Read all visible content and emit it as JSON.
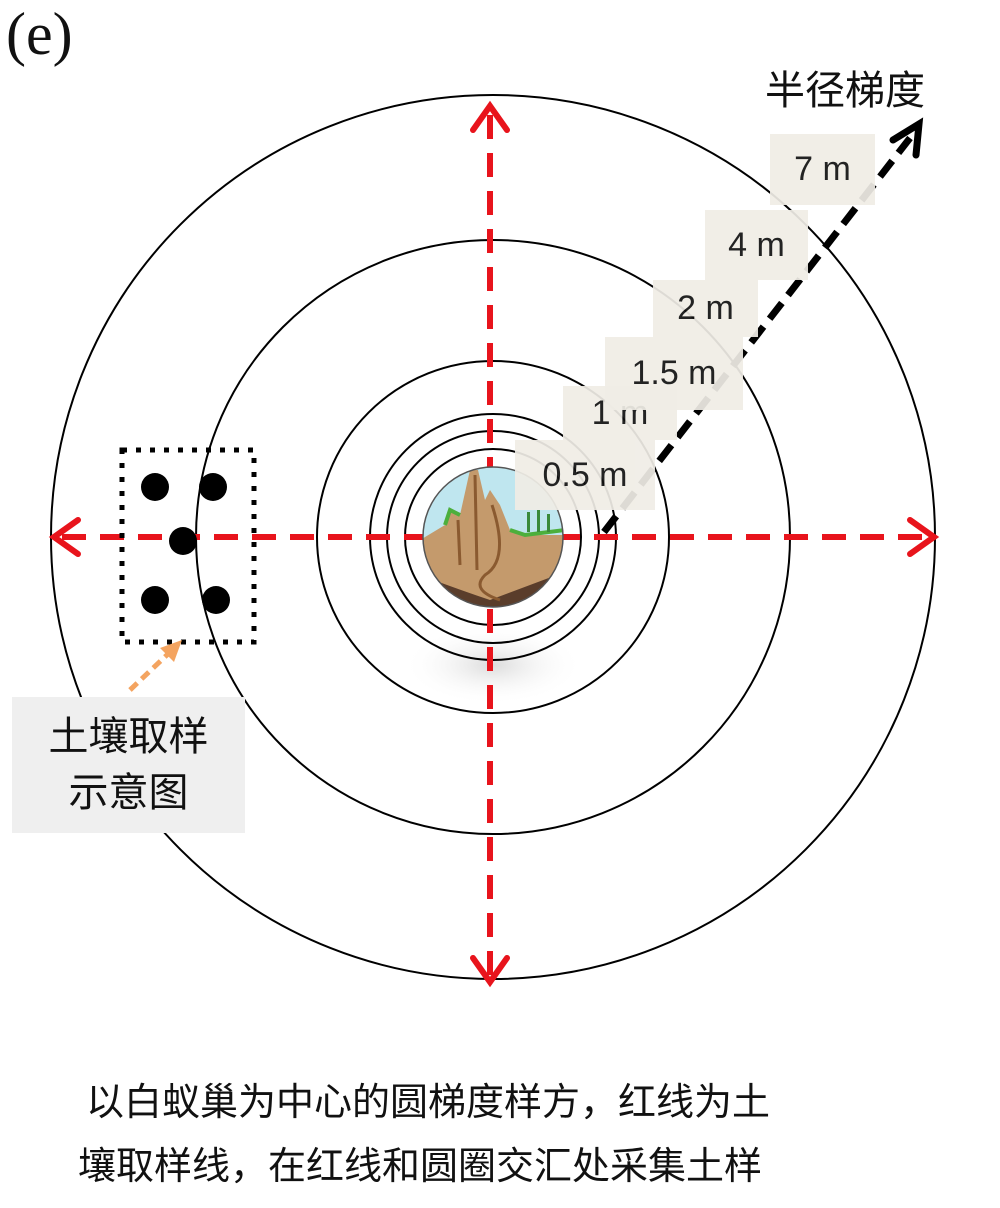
{
  "panel_label": "(e)",
  "gradient_title": "半径梯度",
  "radius_labels": [
    "0.5 m",
    "1 m",
    "1.5 m",
    "2 m",
    "4 m",
    "7 m"
  ],
  "sample_label": {
    "line1": "土壤取样",
    "line2": "示意图"
  },
  "caption": {
    "line1": "以白蚁巢为中心的圆梯度样方，红线为土",
    "line2": "壤取样线，在红线和圆圈交汇处采集土样"
  },
  "colors": {
    "sampling_line": "#e8141c",
    "gradient_arrow": "#000000",
    "sample_arrow": "#f4a460",
    "label_bg": "#f0ede6"
  },
  "center_icon": "termite-mound-icon"
}
